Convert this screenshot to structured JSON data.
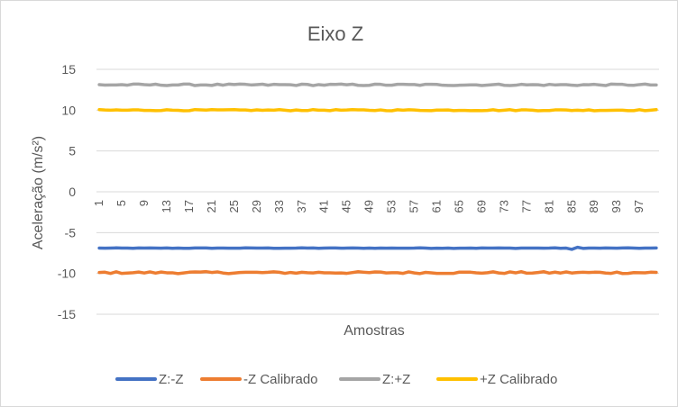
{
  "chart_data": {
    "type": "line",
    "title": "Eixo Z",
    "xlabel": "Amostras",
    "ylabel": "Aceleração (m/s²)",
    "ylim": [
      -15,
      15
    ],
    "yticks": [
      15,
      10,
      5,
      0,
      -5,
      -10,
      -15
    ],
    "xtick_labels": [
      "1",
      "5",
      "9",
      "13",
      "17",
      "21",
      "25",
      "29",
      "33",
      "37",
      "41",
      "45",
      "49",
      "53",
      "57",
      "61",
      "65",
      "69",
      "73",
      "77",
      "81",
      "85",
      "89",
      "93",
      "97"
    ],
    "n_samples": 100,
    "grid": true,
    "legend_position": "bottom",
    "series": [
      {
        "name": "Z:-Z",
        "color": "#4472C4",
        "base": -6.9,
        "noise": 0.03,
        "values": []
      },
      {
        "name": "-Z Calibrado",
        "color": "#ED7D31",
        "base": -9.9,
        "noise": 0.12,
        "values": []
      },
      {
        "name": "Z:+Z",
        "color": "#A5A5A5",
        "base": 13.1,
        "noise": 0.1,
        "values": []
      },
      {
        "name": "+Z Calibrado",
        "color": "#FFC000",
        "base": 10.0,
        "noise": 0.07,
        "values": []
      }
    ]
  }
}
